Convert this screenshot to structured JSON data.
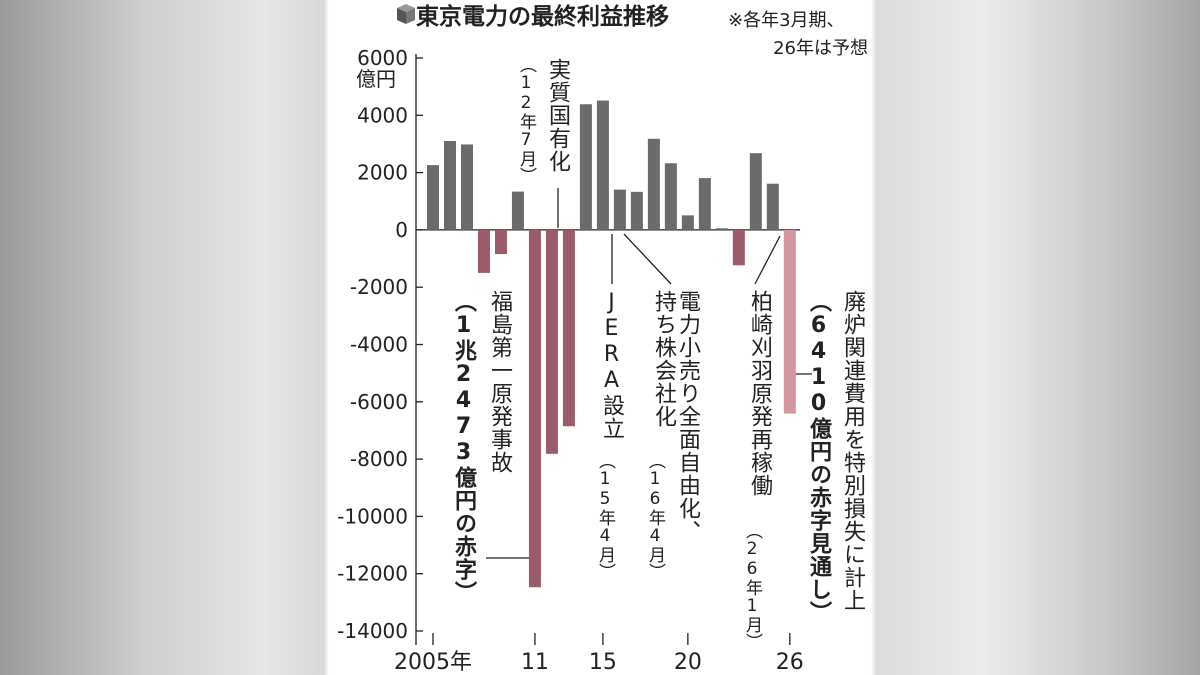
{
  "chart_data": {
    "type": "bar",
    "title": "東京電力の最終利益推移",
    "note_lines": [
      "※各年3月期、",
      "26年は予想"
    ],
    "y_unit": "億円",
    "x": [
      2005,
      2006,
      2007,
      2008,
      2009,
      2010,
      2011,
      2012,
      2013,
      2014,
      2015,
      2016,
      2017,
      2018,
      2019,
      2020,
      2021,
      2022,
      2023,
      2024,
      2025,
      2026
    ],
    "values": [
      2262,
      3103,
      2983,
      -1501,
      -845,
      1337,
      -12473,
      -7816,
      -6852,
      4386,
      4515,
      1407,
      1328,
      3180,
      2326,
      507,
      1808,
      56,
      -1236,
      2678,
      1612,
      -6410
    ],
    "colors": [
      "#6b6b6b",
      "#6b6b6b",
      "#6b6b6b",
      "#9b5b6b",
      "#9b5b6b",
      "#6b6b6b",
      "#9b5b6b",
      "#9b5b6b",
      "#9b5b6b",
      "#6b6b6b",
      "#6b6b6b",
      "#6b6b6b",
      "#6b6b6b",
      "#6b6b6b",
      "#6b6b6b",
      "#6b6b6b",
      "#6b6b6b",
      "#6b6b6b",
      "#9b5b6b",
      "#6b6b6b",
      "#6b6b6b",
      "#d4979f"
    ],
    "xlim": [
      2004,
      2026.6
    ],
    "xticks": [
      {
        "value": 2005,
        "label": "2005年"
      },
      {
        "value": 2011,
        "label": "11"
      },
      {
        "value": 2015,
        "label": "15"
      },
      {
        "value": 2020,
        "label": "20"
      },
      {
        "value": 2026,
        "label": "26"
      }
    ],
    "ylim": [
      -14000,
      6000
    ],
    "yticks": [
      6000,
      4000,
      2000,
      0,
      -2000,
      -4000,
      -6000,
      -8000,
      -10000,
      -12000,
      -14000
    ],
    "grid": false,
    "annotations": [
      {
        "lines": [
          "実質国有化"
        ],
        "note": "（12年7月）"
      },
      {
        "lines": [
          "福島第一原発事故"
        ],
        "note": "（1兆2473億円の赤字）"
      },
      {
        "lines": [
          "JERA設立"
        ],
        "note": "（15年4月）"
      },
      {
        "lines": [
          "電力小売り全面自由化、",
          "持ち株会社化"
        ],
        "note": "（16年4月）"
      },
      {
        "lines": [
          "柏崎刈羽原発再稼働"
        ],
        "note": "（26年1月）"
      },
      {
        "lines": [
          "廃炉関連費用を特別損失に計上"
        ],
        "note": "（6410億円の赤字見通し）"
      }
    ]
  }
}
